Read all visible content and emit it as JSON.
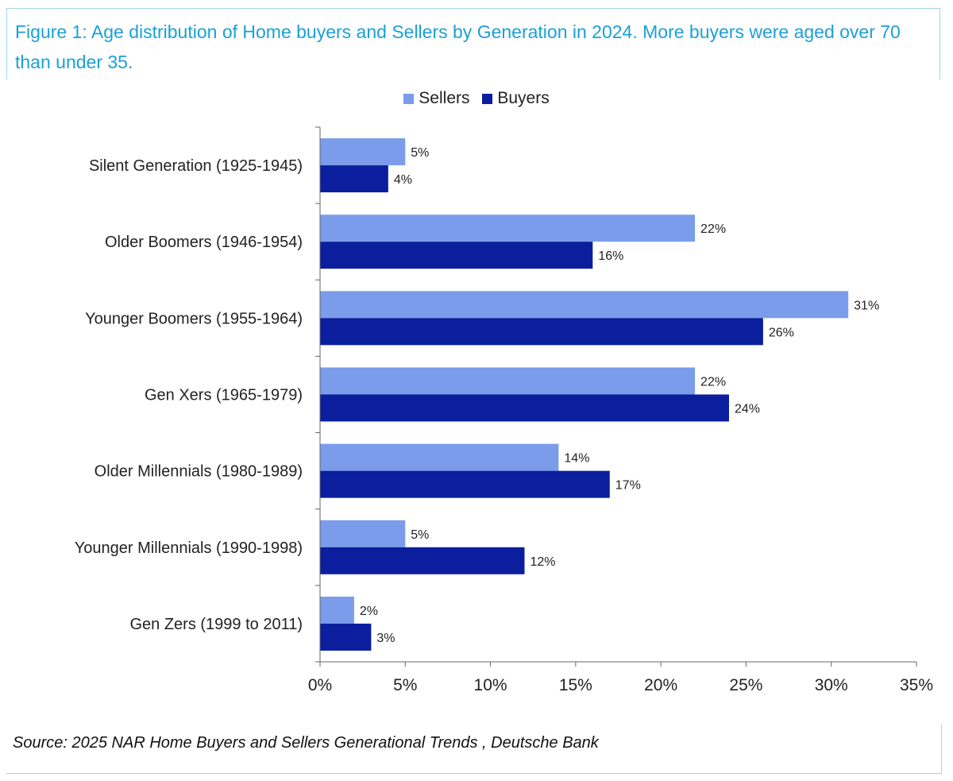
{
  "header": {
    "title": "Figure 1: Age distribution of Home buyers and Sellers by Generation in 2024. More buyers were aged over 70 than under 35."
  },
  "footer": {
    "source": "Source: 2025 NAR Home Buyers and Sellers Generational Trends , Deutsche Bank"
  },
  "colors": {
    "sellers": "#7b9ceb",
    "buyers": "#0a1e9e",
    "title": "#1aa0d8",
    "axis": "#666666"
  },
  "chart_data": {
    "type": "bar",
    "orientation": "horizontal",
    "title": "",
    "xlabel": "",
    "ylabel": "",
    "xlim": [
      0,
      35
    ],
    "ticks": [
      0,
      5,
      10,
      15,
      20,
      25,
      30,
      35
    ],
    "tick_labels": [
      "0%",
      "5%",
      "10%",
      "15%",
      "20%",
      "25%",
      "30%",
      "35%"
    ],
    "grid": false,
    "legend_position": "top-center",
    "categories": [
      "Silent Generation (1925-1945)",
      "Older Boomers (1946-1954)",
      "Younger Boomers (1955-1964)",
      "Gen Xers (1965-1979)",
      "Older Millennials (1980-1989)",
      "Younger Millennials (1990-1998)",
      "Gen Zers (1999 to 2011)"
    ],
    "series": [
      {
        "name": "Sellers",
        "values": [
          5,
          22,
          31,
          22,
          14,
          5,
          2
        ],
        "labels": [
          "5%",
          "22%",
          "31%",
          "22%",
          "14%",
          "5%",
          "2%"
        ]
      },
      {
        "name": "Buyers",
        "values": [
          4,
          16,
          26,
          24,
          17,
          12,
          3
        ],
        "labels": [
          "4%",
          "16%",
          "26%",
          "24%",
          "17%",
          "12%",
          "3%"
        ]
      }
    ]
  }
}
